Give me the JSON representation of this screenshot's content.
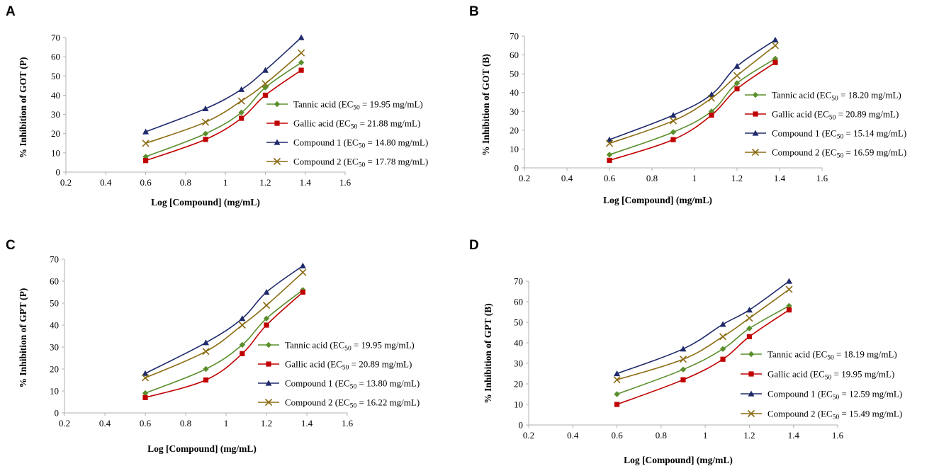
{
  "chart_data": [
    {
      "type": "line",
      "panel": "A",
      "xlabel": "Log [Compound]  (mg/mL)",
      "ylabel": "% Inhibition  of GOT (P)",
      "xlim": [
        0.2,
        1.6
      ],
      "ylim": [
        0,
        70
      ],
      "xticks": [
        "0.2",
        "0.4",
        "0.6",
        "0.8",
        "1",
        "1.2",
        "1.4",
        "1.6"
      ],
      "yticks": [
        "0",
        "10",
        "20",
        "30",
        "40",
        "50",
        "60",
        "70"
      ],
      "x": [
        0.6,
        0.9,
        1.08,
        1.2,
        1.38
      ],
      "series": [
        {
          "name": "Tannic acid",
          "ec50": "19.95 mg/mL",
          "values": [
            8,
            20,
            31,
            44,
            57
          ]
        },
        {
          "name": "Gallic acid",
          "ec50": "21.88 mg/mL",
          "values": [
            6,
            17,
            28,
            40,
            53
          ]
        },
        {
          "name": "Compound 1",
          "ec50": "14.80 mg/mL",
          "values": [
            21,
            33,
            43,
            53,
            70
          ]
        },
        {
          "name": "Compound 2",
          "ec50": "17.78 mg/mL",
          "values": [
            15,
            26,
            37,
            46,
            62
          ]
        }
      ]
    },
    {
      "type": "line",
      "panel": "B",
      "xlabel": "Log [Compound]  (mg/mL)",
      "ylabel": "% Inhibition  of GOT (B)",
      "xlim": [
        0.2,
        1.6
      ],
      "ylim": [
        0,
        70
      ],
      "xticks": [
        "0.2",
        "0.4",
        "0.6",
        "0.8",
        "1",
        "1.2",
        "1.4",
        "1.6"
      ],
      "yticks": [
        "0",
        "10",
        "20",
        "30",
        "40",
        "50",
        "60",
        "70"
      ],
      "x": [
        0.6,
        0.9,
        1.08,
        1.2,
        1.38
      ],
      "series": [
        {
          "name": "Tannic acid",
          "ec50": "18.20 mg/mL",
          "values": [
            7,
            19,
            30,
            45,
            58
          ]
        },
        {
          "name": "Gallic acid",
          "ec50": "20.89 mg/mL",
          "values": [
            4,
            15,
            28,
            42,
            56
          ]
        },
        {
          "name": "Compound 1",
          "ec50": "15.14 mg/mL",
          "values": [
            15,
            28,
            39,
            54,
            68
          ]
        },
        {
          "name": "Compound 2",
          "ec50": "16.59 mg/mL",
          "values": [
            13,
            25,
            37,
            49,
            65
          ]
        }
      ]
    },
    {
      "type": "line",
      "panel": "C",
      "xlabel": "Log [Compound]  (mg/mL)",
      "ylabel": "% Inhibition  of GPT (P)",
      "xlim": [
        0.2,
        1.6
      ],
      "ylim": [
        0,
        70
      ],
      "xticks": [
        "0.2",
        "0.4",
        "0.6",
        "0.8",
        "1",
        "1.2",
        "1.4",
        "1.6"
      ],
      "yticks": [
        "0",
        "10",
        "20",
        "30",
        "40",
        "50",
        "60",
        "70"
      ],
      "x": [
        0.6,
        0.9,
        1.08,
        1.2,
        1.38
      ],
      "series": [
        {
          "name": "Tannic acid",
          "ec50": "19.95 mg/mL",
          "values": [
            9,
            20,
            31,
            43,
            56
          ]
        },
        {
          "name": "Gallic acid",
          "ec50": "20.89 mg/mL",
          "values": [
            7,
            15,
            27,
            40,
            55
          ]
        },
        {
          "name": "Compound 1",
          "ec50": "13.80 mg/mL",
          "values": [
            18,
            32,
            43,
            55,
            67
          ]
        },
        {
          "name": "Compound 2",
          "ec50": "16.22 mg/mL",
          "values": [
            16,
            28,
            40,
            49,
            64
          ]
        }
      ]
    },
    {
      "type": "line",
      "panel": "D",
      "xlabel": "Log [Compound]  (mg/mL)",
      "ylabel": "% Inhibition  of GPT (B)",
      "xlim": [
        0.2,
        1.6
      ],
      "ylim": [
        0,
        70
      ],
      "xticks": [
        "0.2",
        "0.4",
        "0.6",
        "0.8",
        "1",
        "1.2",
        "1.4",
        "1.6"
      ],
      "yticks": [
        "0",
        "10",
        "20",
        "30",
        "40",
        "50",
        "60",
        "70"
      ],
      "x": [
        0.6,
        0.9,
        1.08,
        1.2,
        1.38
      ],
      "series": [
        {
          "name": "Tannic acid",
          "ec50": "18.19 mg/mL",
          "values": [
            15,
            27,
            37,
            47,
            58
          ]
        },
        {
          "name": "Gallic acid",
          "ec50": "19.95 mg/mL",
          "values": [
            10,
            22,
            32,
            43,
            56
          ]
        },
        {
          "name": "Compound 1",
          "ec50": "12.59 mg/mL",
          "values": [
            25,
            37,
            49,
            56,
            70
          ]
        },
        {
          "name": "Compound 2",
          "ec50": "15.49 mg/mL",
          "values": [
            22,
            32,
            43,
            52,
            66
          ]
        }
      ]
    }
  ],
  "styles": {
    "series_colors": [
      "#5b8f2e",
      "#c00000",
      "#1f2a6b",
      "#8b6c12"
    ],
    "series_markers": [
      "diamond",
      "square",
      "triangle",
      "cross"
    ],
    "axis_color": "#b0b0b0"
  },
  "legend_labels": {
    "ec_prefix": "EC",
    "ec_subscript": "50"
  }
}
